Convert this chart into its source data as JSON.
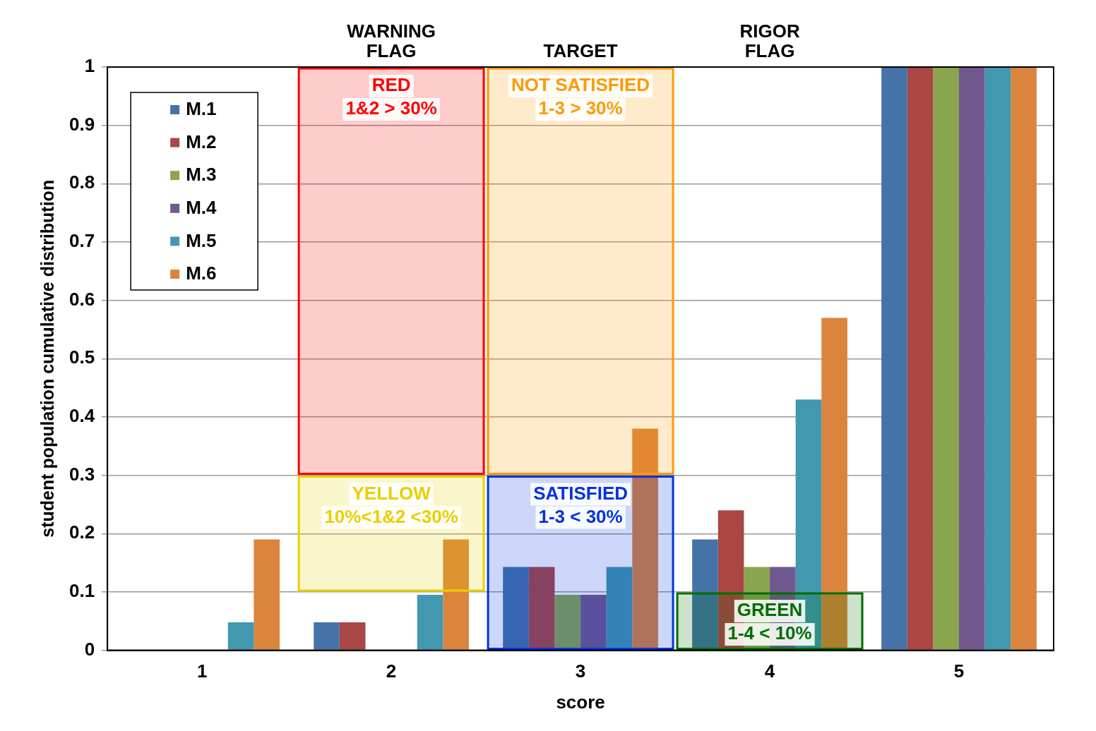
{
  "chart_data": {
    "type": "bar",
    "xlabel": "score",
    "ylabel": "student population cumulative distribution",
    "categories": [
      "1",
      "2",
      "3",
      "4",
      "5"
    ],
    "series": [
      {
        "name": "M.1",
        "color": "#4572a7",
        "values": [
          0,
          0.048,
          0.143,
          0.19,
          1
        ]
      },
      {
        "name": "M.2",
        "color": "#aa4643",
        "values": [
          0,
          0.048,
          0.143,
          0.24,
          1
        ]
      },
      {
        "name": "M.3",
        "color": "#89a54e",
        "values": [
          0,
          0,
          0.095,
          0.143,
          1
        ]
      },
      {
        "name": "M.4",
        "color": "#71588f",
        "values": [
          0,
          0,
          0.095,
          0.143,
          1
        ]
      },
      {
        "name": "M.5",
        "color": "#4198af",
        "values": [
          0.048,
          0.095,
          0.143,
          0.43,
          1
        ]
      },
      {
        "name": "M.6",
        "color": "#db843d",
        "values": [
          0.19,
          0.19,
          0.38,
          0.57,
          1
        ]
      }
    ],
    "ylim": [
      0,
      1
    ],
    "yticks": [
      0,
      0.1,
      0.2,
      0.3,
      0.4,
      0.5,
      0.6,
      0.7,
      0.8,
      0.9,
      1
    ],
    "grid": "y",
    "legend": "top left",
    "bands": [
      {
        "axis": "y",
        "from": 0.3,
        "to": 1,
        "label": "RED\n1&2 > 30%",
        "color": "#ff0000"
      },
      {
        "axis": "y",
        "from": 0.1,
        "to": 0.3,
        "label": "YELLOW\n10%<1&2 <30%",
        "color": "#e8d000"
      },
      {
        "axis": "y",
        "from": 0.3,
        "to": 1,
        "label": "NOT SATISFIED\n1-3 > 30%",
        "color": "#ff9900"
      },
      {
        "axis": "y",
        "from": 0,
        "to": 0.3,
        "label": "SATISFIED\n1-3 < 30%",
        "color": "#0033dd"
      },
      {
        "axis": "y",
        "from": 0,
        "to": 0.1,
        "label": "GREEN\n1-4 < 10%",
        "color": "#006e00"
      }
    ],
    "annotations": [
      "WARNING\nFLAG",
      "TARGET",
      "RIGOR\nFLAG"
    ]
  }
}
